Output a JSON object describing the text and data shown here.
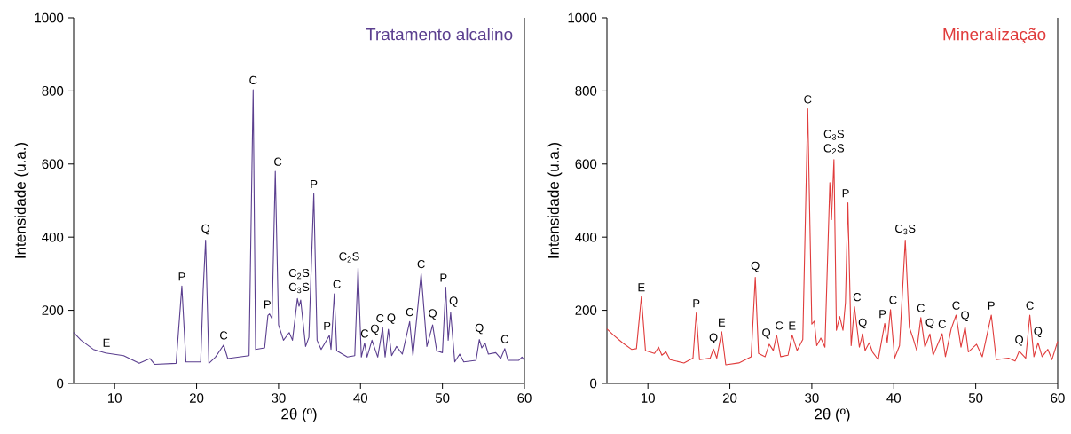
{
  "chart_data": [
    {
      "type": "line",
      "xlabel": "2θ (º)",
      "ylabel": "Intensidade (u.a.)",
      "xlim": [
        5,
        60
      ],
      "ylim": [
        0,
        1000
      ],
      "xticks": [
        10,
        20,
        30,
        40,
        50,
        60
      ],
      "yticks": [
        0,
        200,
        400,
        600,
        800,
        1000
      ],
      "grid": false,
      "series": [
        {
          "name": "Tratamento alcalino",
          "color": "#5b3f8f",
          "x": [
            5.0,
            5.9,
            7.4,
            8.9,
            11.1,
            13.0,
            14.3,
            14.9,
            17.5,
            18.2,
            18.7,
            20.5,
            20.8,
            21.1,
            21.5,
            22.3,
            23.3,
            23.8,
            26.4,
            26.9,
            27.2,
            28.3,
            28.7,
            28.9,
            29.2,
            29.6,
            30.0,
            30.6,
            31.3,
            31.7,
            32.3,
            32.5,
            32.7,
            33.3,
            33.7,
            34.3,
            34.7,
            35.2,
            36.2,
            36.4,
            36.8,
            37.1,
            38.4,
            39.3,
            39.7,
            40.1,
            40.5,
            40.8,
            41.4,
            42.1,
            42.7,
            43.0,
            43.4,
            43.8,
            44.4,
            45.1,
            46.0,
            46.4,
            47.4,
            48.1,
            48.8,
            49.3,
            50.0,
            50.4,
            50.7,
            51.0,
            51.5,
            52.1,
            52.6,
            54.1,
            54.5,
            54.8,
            55.2,
            55.6,
            56.5,
            57.1,
            57.6,
            58.0,
            59.3,
            59.7,
            60.0
          ],
          "values": [
            139,
            118,
            93,
            83,
            76,
            55,
            68,
            52,
            55,
            266,
            59,
            59,
            253,
            392,
            55,
            72,
            105,
            68,
            76,
            803,
            93,
            97,
            186,
            190,
            177,
            580,
            160,
            118,
            139,
            118,
            232,
            211,
            228,
            101,
            126,
            519,
            118,
            93,
            131,
            93,
            245,
            89,
            72,
            76,
            316,
            72,
            110,
            72,
            118,
            72,
            152,
            72,
            148,
            76,
            101,
            80,
            169,
            76,
            300,
            101,
            160,
            89,
            84,
            263,
            118,
            194,
            59,
            80,
            59,
            63,
            120,
            97,
            110,
            80,
            84,
            68,
            95,
            63,
            63,
            72,
            63
          ]
        }
      ],
      "annotations": [
        {
          "text": "E",
          "x": 9.0,
          "y": 85
        },
        {
          "text": "P",
          "x": 18.2,
          "y": 266
        },
        {
          "text": "Q",
          "x": 21.1,
          "y": 392
        },
        {
          "text": "C",
          "x": 23.3,
          "y": 105
        },
        {
          "text": "C",
          "x": 26.9,
          "y": 803
        },
        {
          "text": "P",
          "x": 28.9,
          "y": 190
        },
        {
          "text": "C",
          "x": 29.6,
          "y": 580
        },
        {
          "text": "C$_{3}$S",
          "x": 32.5,
          "y": 232
        },
        {
          "text": "C$_{2}$S",
          "x": 32.5,
          "y": 232
        },
        {
          "text": "P",
          "x": 34.3,
          "y": 519
        },
        {
          "text": "P",
          "x": 36.2,
          "y": 131
        },
        {
          "text": "C",
          "x": 36.8,
          "y": 245
        },
        {
          "text": "C$_{2}$S",
          "x": 39.7,
          "y": 316
        },
        {
          "text": "C",
          "x": 40.5,
          "y": 110
        },
        {
          "text": "Q",
          "x": 41.4,
          "y": 118
        },
        {
          "text": "C",
          "x": 42.7,
          "y": 152
        },
        {
          "text": "Q",
          "x": 43.4,
          "y": 148
        },
        {
          "text": "C",
          "x": 46.0,
          "y": 169
        },
        {
          "text": "C",
          "x": 47.4,
          "y": 300
        },
        {
          "text": "Q",
          "x": 48.8,
          "y": 160
        },
        {
          "text": "P",
          "x": 50.4,
          "y": 263
        },
        {
          "text": "Q",
          "x": 51.0,
          "y": 194
        },
        {
          "text": "Q",
          "x": 54.5,
          "y": 120
        },
        {
          "text": "C",
          "x": 57.6,
          "y": 95
        }
      ]
    },
    {
      "type": "line",
      "xlabel": "2θ (º)",
      "ylabel": "Intensidade (u.a.)",
      "xlim": [
        5,
        60
      ],
      "ylim": [
        0,
        1000
      ],
      "xticks": [
        10,
        20,
        30,
        40,
        50,
        60
      ],
      "yticks": [
        0,
        200,
        400,
        600,
        800,
        1000
      ],
      "grid": false,
      "series": [
        {
          "name": "Mineralização",
          "color": "#e03c3c",
          "x": [
            5.0,
            5.8,
            6.9,
            8.0,
            8.6,
            9.2,
            9.7,
            10.8,
            11.3,
            11.7,
            12.2,
            12.7,
            14.4,
            15.5,
            15.9,
            16.3,
            17.6,
            18.0,
            18.4,
            19.0,
            19.5,
            21.1,
            22.6,
            23.1,
            23.5,
            24.3,
            24.8,
            25.3,
            25.7,
            26.2,
            27.1,
            27.6,
            28.2,
            28.9,
            29.5,
            30.0,
            30.3,
            30.6,
            31.1,
            31.6,
            32.2,
            32.4,
            32.7,
            33.0,
            33.4,
            33.8,
            34.1,
            34.4,
            34.8,
            35.2,
            35.8,
            36.2,
            36.5,
            37.0,
            37.4,
            38.1,
            38.9,
            39.2,
            39.6,
            40.1,
            40.7,
            41.4,
            41.9,
            42.4,
            42.8,
            43.3,
            43.8,
            44.4,
            44.8,
            45.9,
            46.3,
            47.0,
            47.6,
            48.2,
            48.7,
            49.1,
            50.1,
            50.8,
            51.9,
            52.5,
            54.0,
            54.8,
            55.3,
            56.1,
            56.6,
            57.1,
            57.6,
            58.1,
            58.8,
            59.3,
            60.0
          ],
          "values": [
            149,
            132,
            111,
            93,
            95,
            237,
            90,
            82,
            99,
            77,
            86,
            65,
            56,
            69,
            193,
            65,
            69,
            94,
            69,
            141,
            51,
            56,
            73,
            290,
            82,
            73,
            107,
            90,
            132,
            73,
            77,
            132,
            90,
            120,
            751,
            162,
            170,
            103,
            124,
            99,
            549,
            448,
            612,
            145,
            183,
            145,
            221,
            494,
            103,
            210,
            99,
            135,
            90,
            111,
            86,
            65,
            164,
            111,
            202,
            69,
            103,
            392,
            153,
            120,
            90,
            180,
            99,
            135,
            77,
            136,
            73,
            149,
            187,
            99,
            155,
            86,
            107,
            73,
            187,
            65,
            69,
            61,
            88,
            69,
            187,
            73,
            111,
            73,
            93,
            65,
            115
          ]
        }
      ],
      "annotations": [
        {
          "text": "E",
          "x": 9.2,
          "y": 237
        },
        {
          "text": "P",
          "x": 15.9,
          "y": 193
        },
        {
          "text": "Q",
          "x": 18.0,
          "y": 94
        },
        {
          "text": "E",
          "x": 19.0,
          "y": 141
        },
        {
          "text": "Q",
          "x": 23.1,
          "y": 290
        },
        {
          "text": "Q",
          "x": 24.8,
          "y": 107
        },
        {
          "text": "C",
          "x": 25.7,
          "y": 132
        },
        {
          "text": "E",
          "x": 27.6,
          "y": 132
        },
        {
          "text": "C",
          "x": 29.5,
          "y": 751
        },
        {
          "text": "C$_{2}$S",
          "x": 32.7,
          "y": 612
        },
        {
          "text": "C$_{3}$S",
          "x": 32.7,
          "y": 612
        },
        {
          "text": "P",
          "x": 34.4,
          "y": 494
        },
        {
          "text": "C",
          "x": 35.2,
          "y": 210
        },
        {
          "text": "Q",
          "x": 36.2,
          "y": 135
        },
        {
          "text": "P",
          "x": 38.9,
          "y": 164
        },
        {
          "text": "C",
          "x": 39.6,
          "y": 202
        },
        {
          "text": "C$_{3}$S",
          "x": 41.4,
          "y": 392
        },
        {
          "text": "C",
          "x": 43.3,
          "y": 180
        },
        {
          "text": "Q",
          "x": 44.4,
          "y": 135
        },
        {
          "text": "C",
          "x": 45.9,
          "y": 136
        },
        {
          "text": "C",
          "x": 47.6,
          "y": 187
        },
        {
          "text": "Q",
          "x": 48.7,
          "y": 155
        },
        {
          "text": "P",
          "x": 51.9,
          "y": 187
        },
        {
          "text": "Q",
          "x": 55.3,
          "y": 88
        },
        {
          "text": "C",
          "x": 56.6,
          "y": 187
        },
        {
          "text": "Q",
          "x": 57.6,
          "y": 111
        }
      ]
    }
  ]
}
